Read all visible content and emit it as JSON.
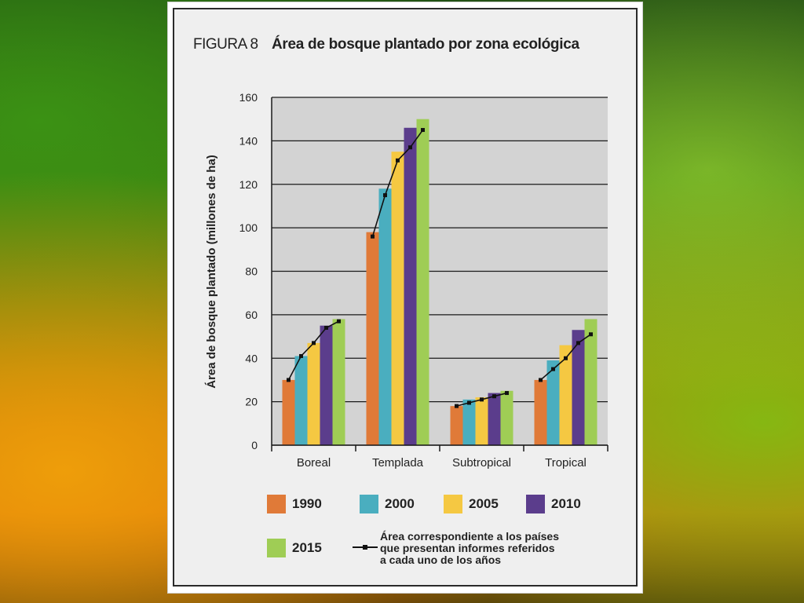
{
  "figure": {
    "label": "FIGURA 8",
    "title": "Área de bosque plantado por zona ecológica"
  },
  "chart_data": {
    "type": "bar",
    "title": "Área de bosque plantado por zona ecológica",
    "ylabel": "Área de bosque plantado (millones de ha)",
    "xlabel": "",
    "ylim": [
      0,
      160
    ],
    "yticks": [
      0,
      20,
      40,
      60,
      80,
      100,
      120,
      140,
      160
    ],
    "grid": true,
    "categories": [
      "Boreal",
      "Templada",
      "Subtropical",
      "Tropical"
    ],
    "series": [
      {
        "name": "1990",
        "color": "#e07a38",
        "values": [
          30,
          98,
          18,
          30
        ]
      },
      {
        "name": "2000",
        "color": "#4aaebf",
        "values": [
          41,
          118,
          21,
          39
        ]
      },
      {
        "name": "2005",
        "color": "#f5c842",
        "values": [
          47,
          135,
          22,
          46
        ]
      },
      {
        "name": "2010",
        "color": "#5b3d8c",
        "values": [
          55,
          146,
          24,
          53
        ]
      },
      {
        "name": "2015",
        "color": "#9fcd55",
        "values": [
          58,
          150,
          25,
          58
        ]
      }
    ],
    "reporting_line": {
      "name": "Área correspondiente a los países que presentan informes referidos a cada uno de los años",
      "color": "#111111",
      "values": [
        [
          30,
          41,
          47,
          54,
          57
        ],
        [
          96,
          115,
          131,
          137,
          145
        ],
        [
          18,
          19.5,
          21,
          22.5,
          24
        ],
        [
          30,
          35,
          40,
          47,
          51
        ]
      ]
    },
    "legend": {
      "position": "bottom",
      "note_lines": [
        "Área correspondiente a los países",
        "que presentan informes referidos",
        "a cada uno de los años"
      ]
    }
  }
}
